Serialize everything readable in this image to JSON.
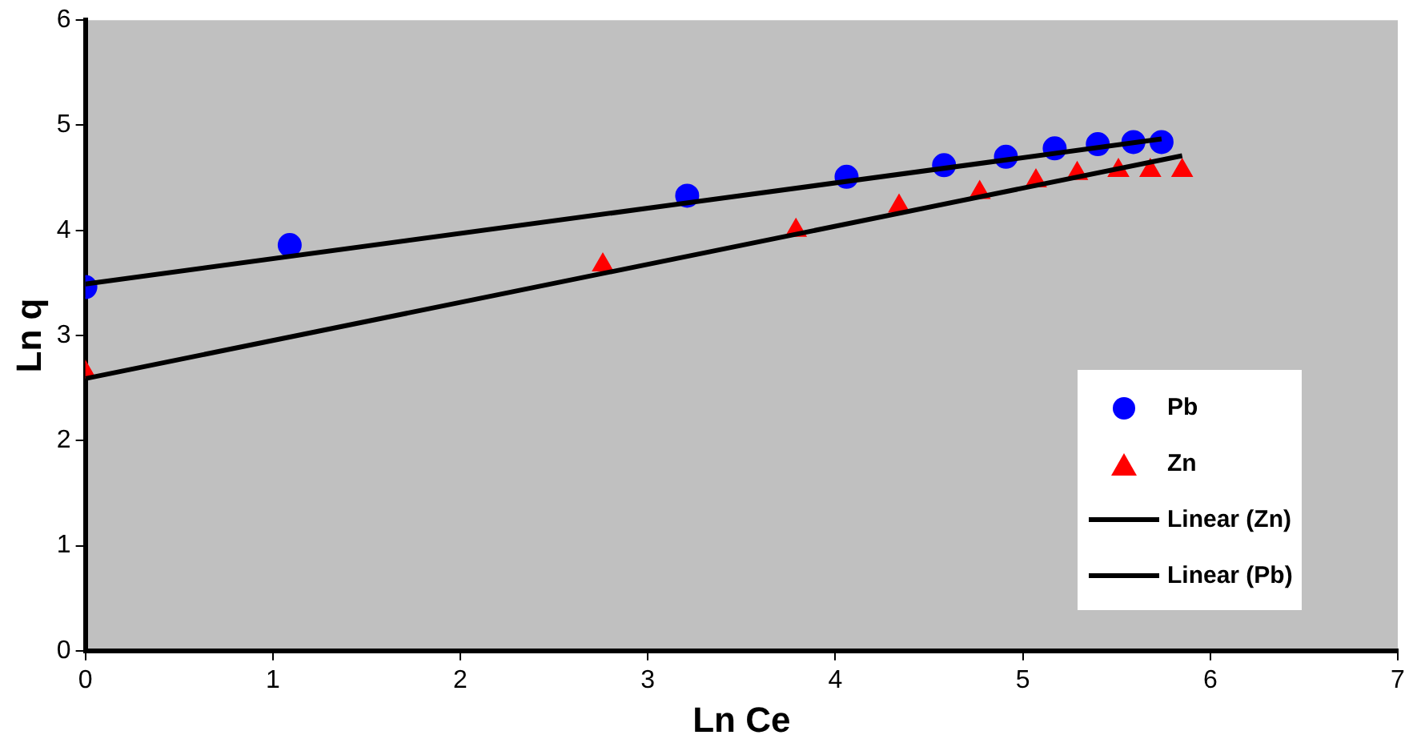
{
  "chart_data": {
    "type": "scatter",
    "xlabel": "Ln Ce",
    "ylabel": "Ln q",
    "xlim": [
      0,
      7
    ],
    "xticks": [
      0,
      1,
      2,
      3,
      4,
      5,
      6,
      7
    ],
    "ylim": [
      0,
      6
    ],
    "yticks": [
      0,
      1,
      2,
      3,
      4,
      5,
      6
    ],
    "grid": false,
    "legend": "right",
    "series": [
      {
        "name": "Pb",
        "type": "scatter",
        "marker": "circle",
        "color": "#0000ff",
        "x": [
          0,
          1.09,
          3.21,
          4.06,
          4.58,
          4.91,
          5.17,
          5.4,
          5.59,
          5.74
        ],
        "values": [
          3.46,
          3.86,
          4.33,
          4.51,
          4.62,
          4.7,
          4.78,
          4.82,
          4.84,
          4.84
        ]
      },
      {
        "name": "Zn",
        "type": "scatter",
        "marker": "triangle",
        "color": "#ff0000",
        "x": [
          0,
          2.76,
          3.79,
          4.34,
          4.77,
          5.07,
          5.29,
          5.51,
          5.68,
          5.85
        ],
        "values": [
          2.65,
          3.67,
          4.0,
          4.23,
          4.36,
          4.47,
          4.54,
          4.57,
          4.57,
          4.57
        ]
      },
      {
        "name": "Linear (Zn)",
        "type": "line",
        "marker": "none",
        "color": "#000000",
        "x": [
          0,
          5.85
        ],
        "values": [
          2.59,
          4.71
        ]
      },
      {
        "name": "Linear (Pb)",
        "type": "line",
        "marker": "none",
        "color": "#000000",
        "x": [
          0,
          5.74
        ],
        "values": [
          3.49,
          4.87
        ]
      }
    ]
  }
}
